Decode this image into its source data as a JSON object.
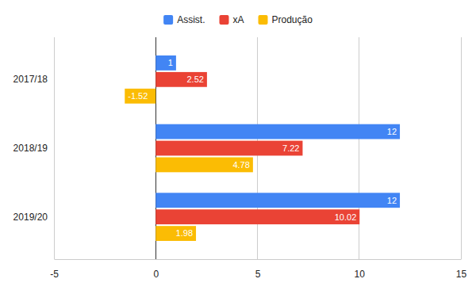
{
  "chart_data": {
    "type": "bar",
    "orientation": "horizontal",
    "categories": [
      "2017/18",
      "2018/19",
      "2019/20"
    ],
    "series": [
      {
        "name": "Assist.",
        "color": "#4285f4",
        "values": [
          1,
          12,
          12
        ]
      },
      {
        "name": "xA",
        "color": "#ea4335",
        "values": [
          2.52,
          7.22,
          10.02
        ]
      },
      {
        "name": "Produção",
        "color": "#fbbc04",
        "values": [
          -1.52,
          4.78,
          1.98
        ]
      }
    ],
    "xlim": [
      -5,
      15
    ],
    "xticks": [
      -5,
      0,
      5,
      10,
      15
    ],
    "grid": true,
    "legend": "top",
    "data_labels": true
  }
}
